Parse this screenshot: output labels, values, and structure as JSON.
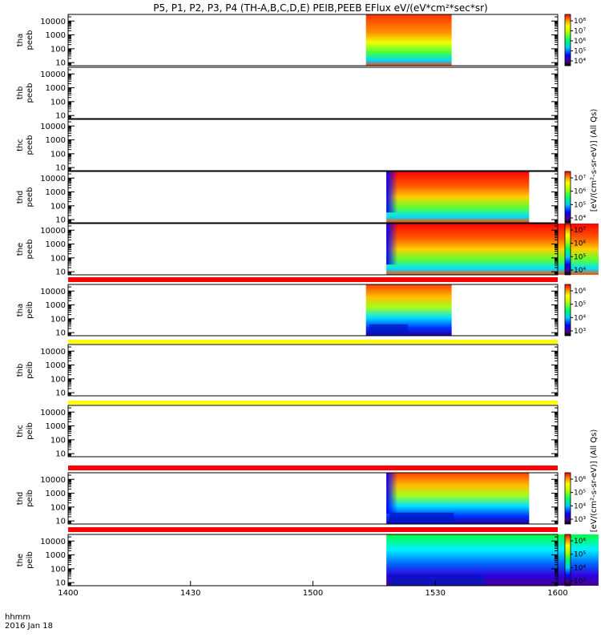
{
  "title": "P5, P1, P2, P3, P4 (TH-A,B,C,D,E) PEIB,PEEB EFlux eV/(eV*cm²*sec*sr)",
  "x_label_line1": "hhmm",
  "x_label_line2": "2016 Jan 18",
  "colorbar_label_electron": "[eV/(cm²-s-sr-eV)] (All Qs)",
  "colorbar_label_ion": "[eV/(cm²-s-sr-eV)] (All Qs)",
  "colors": {
    "red_bar": "#ff0000",
    "yellow_bar": "#ffff00",
    "axis": "#000000"
  },
  "chart_data": {
    "type": "heatmap",
    "x_ticks": [
      "1400",
      "1430",
      "1500",
      "1530",
      "1600"
    ],
    "x_range": [
      1400,
      1600
    ],
    "y_scale": "log",
    "y_ticks": [
      "10",
      "100",
      "1000",
      "10000"
    ],
    "y_range": [
      6,
      30000
    ],
    "panels": [
      {
        "label": "tha\npeeb",
        "has_data": true,
        "start": 1513,
        "end": 1534,
        "colorbar_ticks": [
          "10⁸",
          "10⁷",
          "10⁶",
          "10⁵",
          "10⁴"
        ]
      },
      {
        "label": "thb\npeeb",
        "has_data": false
      },
      {
        "label": "thc\npeeb",
        "has_data": false
      },
      {
        "label": "thd\npeeb",
        "has_data": true,
        "start": 1518,
        "end": 1553,
        "colorbar_ticks": [
          "10⁷",
          "10⁶",
          "10⁵",
          "10⁴"
        ]
      },
      {
        "label": "the\npeeb",
        "has_data": true,
        "start": 1518,
        "end": 1570,
        "colorbar_ticks": [
          "10⁷",
          "10⁶",
          "10⁵",
          "10⁴"
        ]
      },
      {
        "label": "tha\npeib",
        "has_data": true,
        "start": 1513,
        "end": 1534,
        "colorbar_ticks": [
          "10⁶",
          "10⁵",
          "10⁴",
          "10³"
        ]
      },
      {
        "label": "thb\npeib",
        "has_data": false
      },
      {
        "label": "thc\npeib",
        "has_data": false
      },
      {
        "label": "thd\npeib",
        "has_data": true,
        "start": 1518,
        "end": 1553,
        "colorbar_ticks": [
          "10⁶",
          "10⁵",
          "10⁴",
          "10³"
        ]
      },
      {
        "label": "the\npeib",
        "has_data": true,
        "start": 1518,
        "end": 1570,
        "colorbar_ticks": [
          "10⁶",
          "10⁵",
          "10⁴",
          "10³"
        ]
      }
    ]
  }
}
